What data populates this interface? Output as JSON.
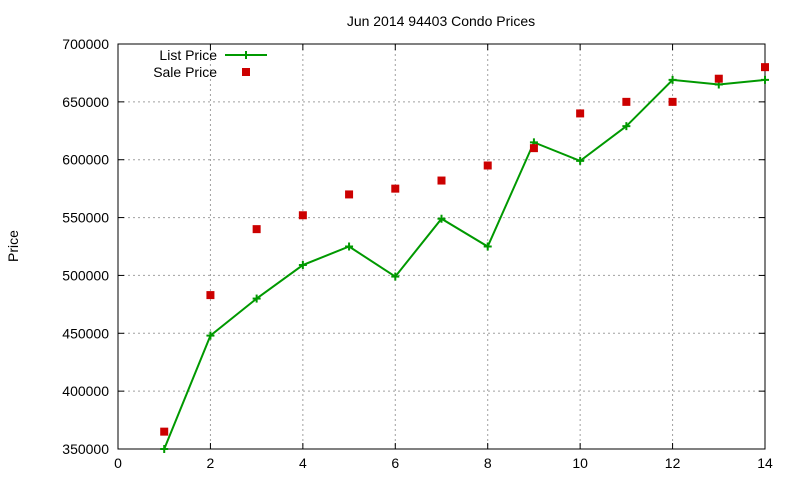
{
  "chart_data": {
    "type": "line",
    "title": "Jun 2014 94403 Condo Prices",
    "xlabel": "",
    "ylabel": "Price",
    "xlim": [
      0,
      14
    ],
    "ylim": [
      350000,
      700000
    ],
    "xticks": [
      0,
      2,
      4,
      6,
      8,
      10,
      12,
      14
    ],
    "yticks": [
      350000,
      400000,
      450000,
      500000,
      550000,
      600000,
      650000,
      700000
    ],
    "grid": true,
    "legend_position": "top-left",
    "series": [
      {
        "name": "List Price",
        "style": "line-plus",
        "color": "#009900",
        "x": [
          1,
          2,
          3,
          4,
          5,
          6,
          7,
          8,
          9,
          10,
          11,
          12,
          13,
          14
        ],
        "y": [
          350000,
          448000,
          480000,
          509000,
          525000,
          499000,
          549000,
          525000,
          615000,
          599000,
          629000,
          669000,
          665000,
          669000
        ]
      },
      {
        "name": "Sale Price",
        "style": "square-points",
        "color": "#cc0000",
        "x": [
          1,
          2,
          3,
          4,
          5,
          6,
          7,
          8,
          9,
          10,
          11,
          12,
          13,
          14
        ],
        "y": [
          365000,
          483000,
          540000,
          552000,
          570000,
          575000,
          582000,
          595000,
          610000,
          640000,
          650000,
          650000,
          670000,
          680000
        ]
      }
    ]
  }
}
